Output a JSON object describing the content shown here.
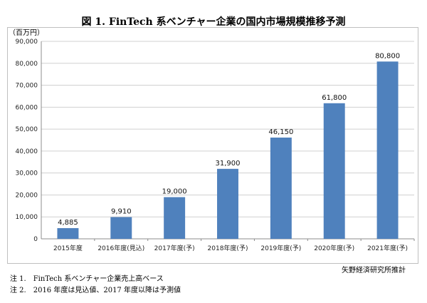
{
  "title": "図 1. FinTech 系ベンチャー企業の国内市場規模推移予測",
  "chart_data": {
    "type": "bar",
    "unit_label": "（百万円）",
    "categories": [
      "2015年度",
      "2016年度(見込)",
      "2017年度(予)",
      "2018年度(予)",
      "2019年度(予)",
      "2020年度(予)",
      "2021年度(予)"
    ],
    "values": [
      4885,
      9910,
      19000,
      31900,
      46150,
      61800,
      80800
    ],
    "value_labels": [
      "4,885",
      "9,910",
      "19,000",
      "31,900",
      "46,150",
      "61,800",
      "80,800"
    ],
    "yticks": [
      0,
      10000,
      20000,
      30000,
      40000,
      50000,
      60000,
      70000,
      80000,
      90000
    ],
    "ytick_labels": [
      "0",
      "10,000",
      "20,000",
      "30,000",
      "40,000",
      "50,000",
      "60,000",
      "70,000",
      "80,000",
      "90,000"
    ],
    "ylim": [
      0,
      90000
    ],
    "grid": true,
    "bar_color": "#4f81bd"
  },
  "source": "矢野経済研究所推計",
  "notes": [
    "注 1.　FinTech 系ベンチャー企業売上高ベース",
    "注 2.　2016 年度は見込値、2017 年度以降は予測値"
  ]
}
